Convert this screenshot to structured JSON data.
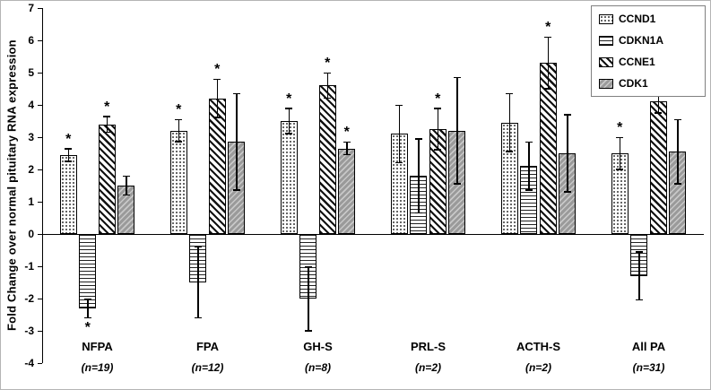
{
  "chart_data": {
    "type": "bar",
    "title": "",
    "ylabel": "Fold Change over normal pituitary RNA expression",
    "xlabel": "",
    "ylim": [
      -4,
      7
    ],
    "yticks": [
      7,
      6,
      5,
      4,
      3,
      2,
      1,
      0,
      -1,
      -2,
      -3,
      -4
    ],
    "grid": false,
    "legend_position": "top-right",
    "significance_marker": "*",
    "categories": [
      "NFPA",
      "FPA",
      "GH-S",
      "PRL-S",
      "ACTH-S",
      "All PA"
    ],
    "category_sublabels": [
      "(n=19)",
      "(n=12)",
      "(n=8)",
      "(n=2)",
      "(n=2)",
      "(n=31)"
    ],
    "series": [
      {
        "name": "CCND1",
        "pattern": "dots",
        "values": [
          2.45,
          3.2,
          3.5,
          3.1,
          3.45,
          2.5
        ],
        "errors": [
          0.2,
          0.35,
          0.4,
          0.9,
          0.9,
          0.5
        ],
        "significant": [
          true,
          true,
          true,
          false,
          false,
          true
        ]
      },
      {
        "name": "CDKN1A",
        "pattern": "horizontal-stripes",
        "values": [
          -2.3,
          -1.5,
          -2.0,
          1.8,
          2.1,
          -1.3
        ],
        "errors": [
          0.3,
          1.1,
          1.0,
          1.15,
          0.75,
          0.75
        ],
        "significant": [
          true,
          false,
          false,
          false,
          false,
          false
        ]
      },
      {
        "name": "CCNE1",
        "pattern": "diagonal-stripes",
        "values": [
          3.4,
          4.2,
          4.6,
          3.25,
          5.3,
          4.1
        ],
        "errors": [
          0.25,
          0.6,
          0.4,
          0.65,
          0.8,
          0.35
        ],
        "significant": [
          true,
          true,
          true,
          true,
          true,
          true
        ]
      },
      {
        "name": "CDK1",
        "pattern": "gray-diagonal",
        "values": [
          1.5,
          2.85,
          2.65,
          3.2,
          2.5,
          2.55
        ],
        "errors": [
          0.3,
          1.5,
          0.2,
          1.65,
          1.2,
          1.0
        ],
        "significant": [
          false,
          false,
          true,
          false,
          false,
          false
        ]
      }
    ]
  }
}
